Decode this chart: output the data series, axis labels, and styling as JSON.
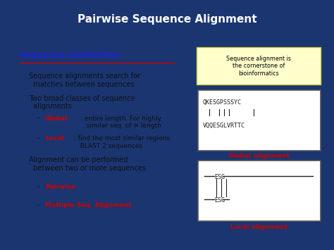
{
  "title": "Pairwise Sequence Alignment",
  "title_color": "#FFFFFF",
  "title_fontsize": 11,
  "bg_color": "#1a3570",
  "content_bg": "#FFFFFF",
  "section_title": "Sequence similarities",
  "section_title_color": "#2222CC",
  "section_title_fontsize": 8.5,
  "underline_color": "#CC0000",
  "callout_text": "Sequence alignment is\nthe cornerstone of\nbioinformatics",
  "callout_bg": "#FFFFCC",
  "callout_border": "#CCCC44",
  "global_seq1": "QKESGPSSSYC",
  "global_seq2": "VQQESGLVRTTC",
  "global_align_label": "Global alignment",
  "local_align_label": "Local alignment",
  "align_label_color": "#CC0000",
  "match_lines_global": [
    1,
    3,
    4,
    5,
    10
  ],
  "bullet_char": "•",
  "dash_char": "-"
}
